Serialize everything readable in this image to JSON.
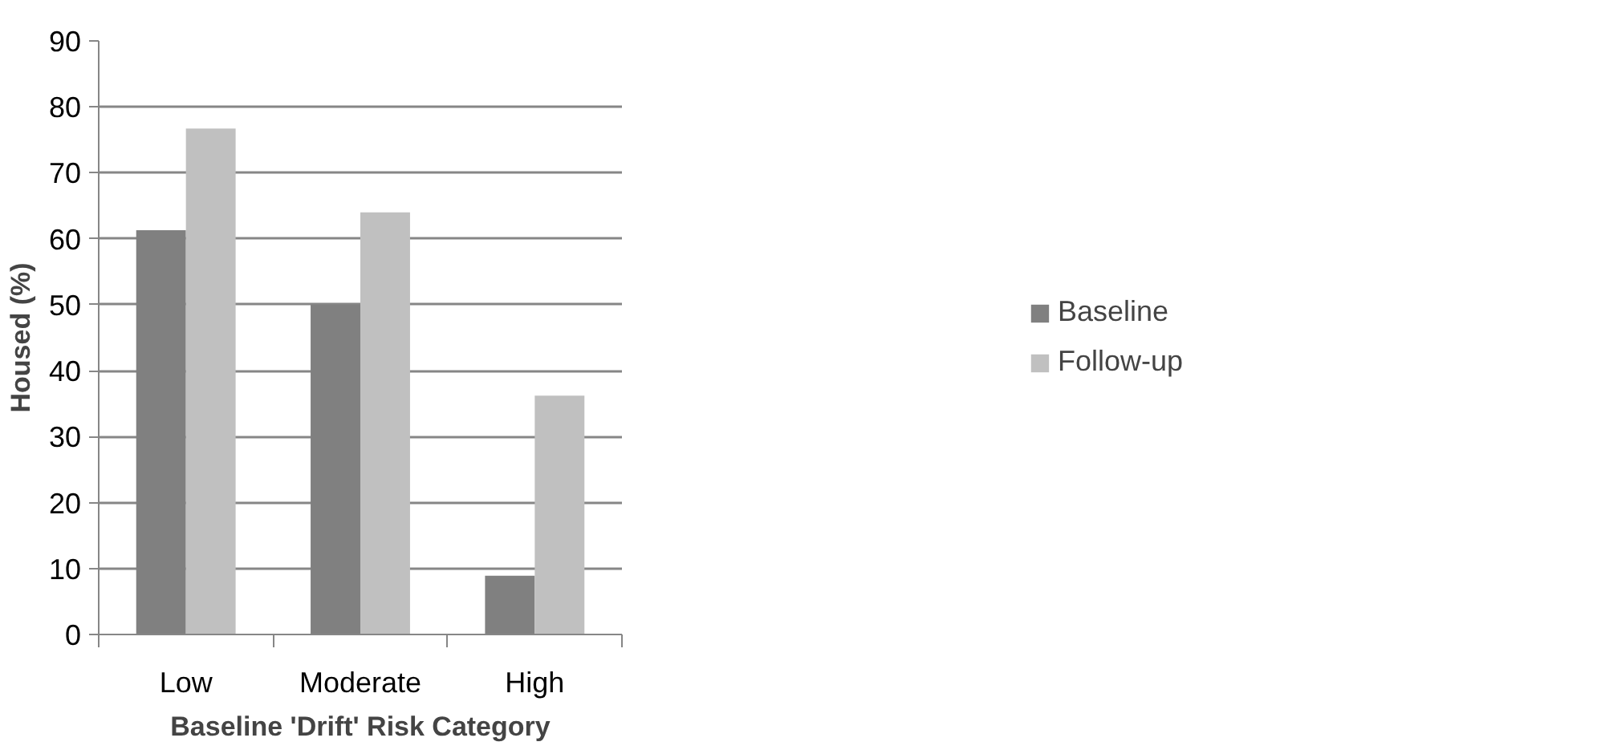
{
  "chart_data": {
    "type": "bar",
    "xlabel": "Baseline 'Drift' Risk Category",
    "ylabel": "Housed (%)",
    "categories": [
      "Low",
      "Moderate",
      "High"
    ],
    "series": [
      {
        "name": "Baseline",
        "color": "#808080",
        "values": [
          61.3,
          50.0,
          8.9
        ]
      },
      {
        "name": "Follow-up",
        "color": "#c0c0c0",
        "values": [
          76.7,
          64.0,
          36.2
        ]
      }
    ],
    "ylim": [
      0,
      90
    ],
    "yticks": [
      0,
      10,
      20,
      30,
      40,
      50,
      60,
      70,
      80,
      90
    ],
    "grid": "y",
    "legend": "right"
  }
}
